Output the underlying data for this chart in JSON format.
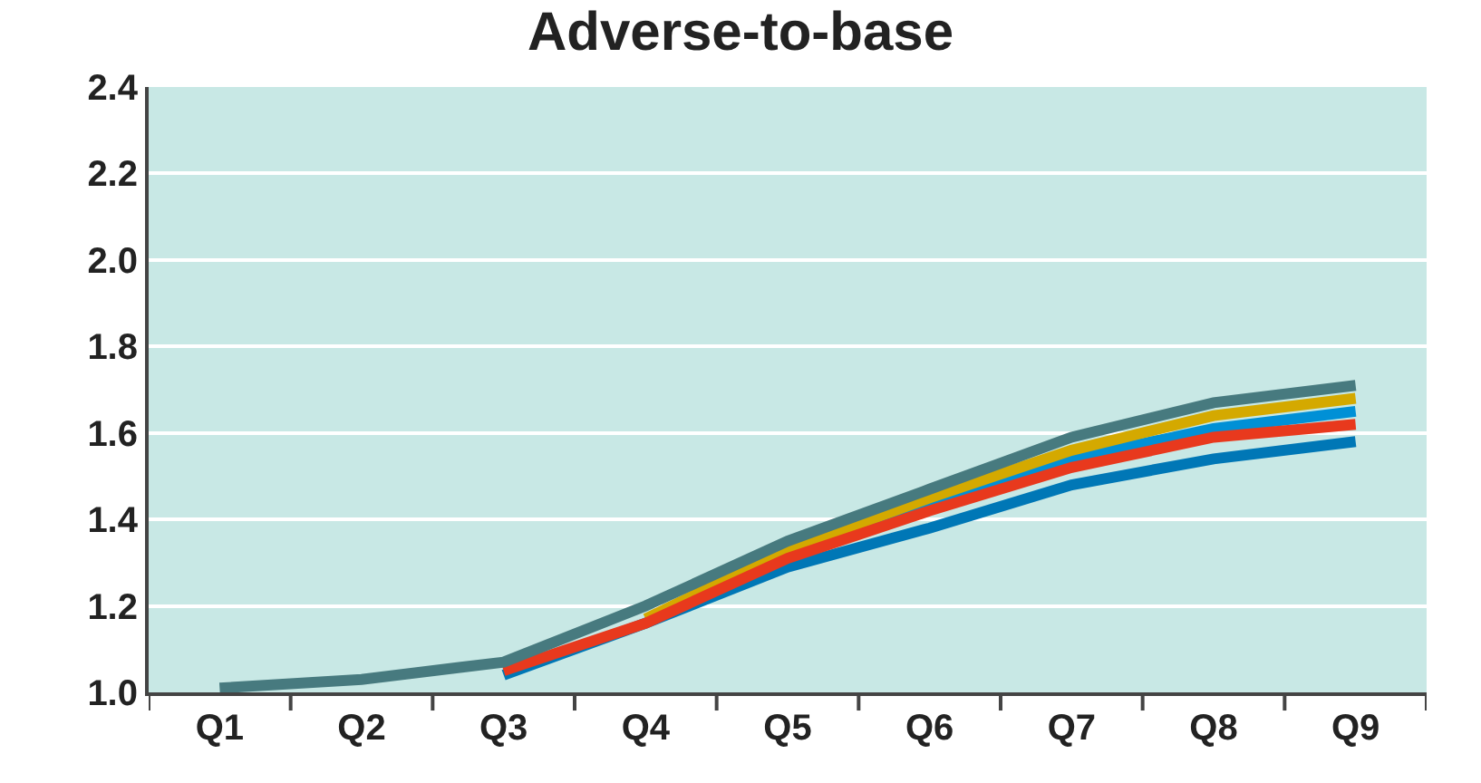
{
  "chart_data": {
    "type": "line",
    "title": "Adverse-to-base",
    "categories": [
      "Q1",
      "Q2",
      "Q3",
      "Q4",
      "Q5",
      "Q6",
      "Q7",
      "Q8",
      "Q9"
    ],
    "series": [
      {
        "color": "#0077b6",
        "values": [
          null,
          null,
          1.04,
          1.16,
          1.29,
          1.38,
          1.48,
          1.54,
          1.58
        ]
      },
      {
        "color": "#0090d6",
        "values": [
          null,
          null,
          null,
          null,
          1.32,
          1.43,
          1.54,
          1.61,
          1.65
        ]
      },
      {
        "color": "#d4a900",
        "values": [
          null,
          null,
          null,
          1.17,
          1.33,
          1.45,
          1.56,
          1.64,
          1.68
        ]
      },
      {
        "color": "#e8391d",
        "values": [
          null,
          null,
          1.05,
          1.16,
          1.31,
          1.42,
          1.52,
          1.59,
          1.62
        ]
      },
      {
        "color": "#477a7f",
        "values": [
          1.01,
          1.03,
          1.07,
          1.2,
          1.35,
          1.47,
          1.59,
          1.67,
          1.71
        ]
      }
    ],
    "ylim": [
      1.0,
      2.4
    ],
    "yticks": [
      {
        "value": 1.0,
        "label": "1.0"
      },
      {
        "value": 1.2,
        "label": "1.2"
      },
      {
        "value": 1.4,
        "label": "1.4"
      },
      {
        "value": 1.6,
        "label": "1.6"
      },
      {
        "value": 1.8,
        "label": "1.8"
      },
      {
        "value": 2.0,
        "label": "2.0"
      },
      {
        "value": 2.2,
        "label": "2.2"
      },
      {
        "value": 2.4,
        "label": "2.4"
      }
    ],
    "grid": "y",
    "marker": "none",
    "line_style": "solid"
  }
}
